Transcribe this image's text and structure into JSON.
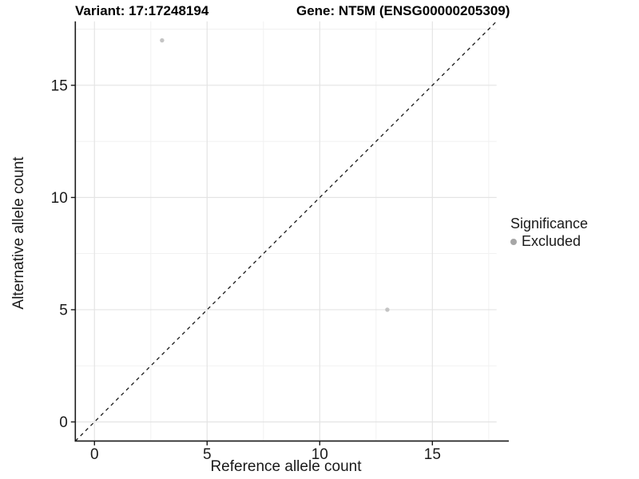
{
  "figure": {
    "title_left": "Variant: 17:17248194",
    "title_right": "Gene: NT5M (ENSG00000205309)"
  },
  "legend": {
    "title": "Significance",
    "items": [
      {
        "label": "Excluded",
        "color": "#a6a6a6"
      }
    ]
  },
  "chart_data": {
    "type": "scatter",
    "title": "Variant: 17:17248194  /  Gene: NT5M (ENSG00000205309)",
    "xlabel": "Reference allele count",
    "ylabel": "Alternative allele count",
    "xlim": [
      -0.85,
      17.85
    ],
    "ylim": [
      -0.85,
      17.85
    ],
    "x_ticks": [
      0,
      5,
      10,
      15
    ],
    "y_ticks": [
      0,
      5,
      10,
      15
    ],
    "x_minor_ticks": [
      2.5,
      7.5,
      12.5,
      17.5
    ],
    "y_minor_ticks": [
      2.5,
      7.5,
      12.5,
      17.5
    ],
    "grid": true,
    "legend_position": "right",
    "series": [
      {
        "name": "Excluded",
        "color": "#c4c4c4",
        "points": [
          {
            "x": 3,
            "y": 17
          },
          {
            "x": 13,
            "y": 5
          }
        ]
      }
    ],
    "reference_line": {
      "name": "identity-line",
      "style": "dashed",
      "color": "#1a1a1a",
      "from": [
        -0.85,
        -0.85
      ],
      "to": [
        17.85,
        17.85
      ]
    },
    "colors": {
      "major_grid": "#e4e4e4",
      "minor_grid": "#f1f1f1",
      "axis": "#1a1a1a",
      "point": "#c4c4c4"
    }
  }
}
